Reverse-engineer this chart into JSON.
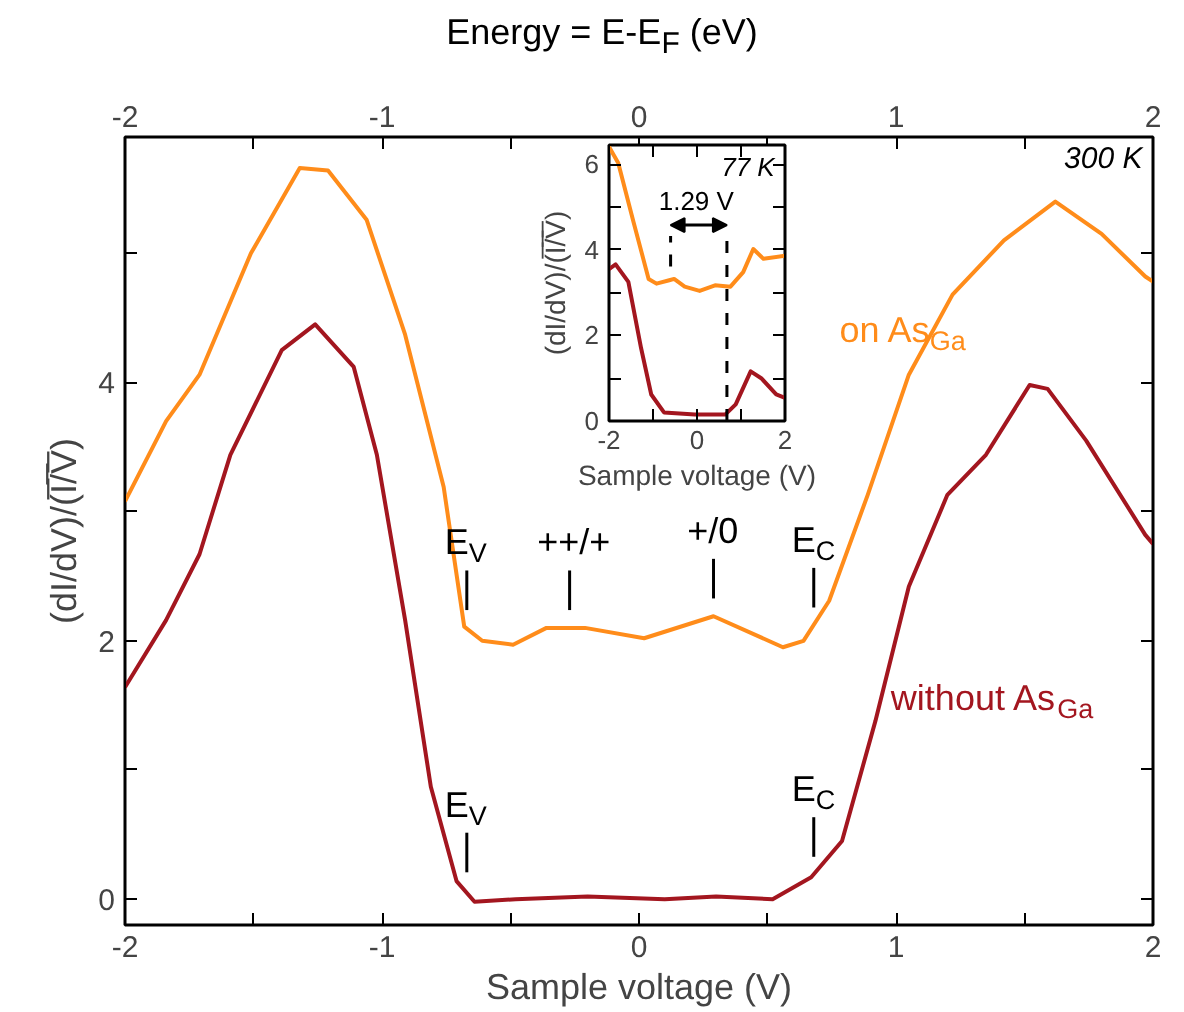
{
  "chart_data": [
    {
      "type": "line",
      "xlabel": "Sample voltage (V)",
      "ylabel": "(dI/dV)/(I̅/̅V̅)",
      "x2label": "Energy = E-E$_{F}$ (eV)",
      "xlim": [
        -2,
        2
      ],
      "ylim": [
        -0.2,
        5.9
      ],
      "x2lim": [
        -2,
        2
      ],
      "xticks": [
        -2,
        {
          "value": -1.5,
          "label": null
        },
        -1,
        {
          "value": -0.5,
          "label": null
        },
        0,
        {
          "value": 0.5,
          "label": null
        },
        1,
        {
          "value": 1.5,
          "label": null
        },
        2
      ],
      "x2ticks": [
        -2,
        {
          "value": -1.5,
          "label": null
        },
        -1,
        {
          "value": -0.5,
          "label": null
        },
        0,
        {
          "value": 0.5,
          "label": null
        },
        1,
        {
          "value": 1.5,
          "label": null
        },
        2
      ],
      "yticks": [
        0,
        {
          "value": 1,
          "label": null
        },
        2,
        {
          "value": 3,
          "label": null
        },
        4,
        {
          "value": 5,
          "label": null
        }
      ],
      "grid": false,
      "legend": false,
      "series": [
        {
          "name": "on As$_{Ga}$",
          "color": "#ff8c1a",
          "x": [
            -2,
            -1.84,
            -1.71,
            -1.51,
            -1.32,
            -1.21,
            -1.06,
            -0.91,
            -0.76,
            -0.68,
            -0.61,
            -0.49,
            -0.36,
            -0.27,
            -0.21,
            0.02,
            0.29,
            0.56,
            0.64,
            0.74,
            0.89,
            1.05,
            1.22,
            1.42,
            1.62,
            1.8,
            1.97,
            2
          ],
          "values": [
            3.08,
            3.7,
            4.06,
            5.0,
            5.66,
            5.64,
            5.26,
            4.37,
            3.19,
            2.11,
            2.0,
            1.97,
            2.1,
            2.1,
            2.1,
            2.02,
            2.19,
            1.95,
            2.0,
            2.31,
            3.13,
            4.06,
            4.68,
            5.1,
            5.4,
            5.15,
            4.82,
            4.78
          ]
        },
        {
          "name": "without As$_{Ga}$",
          "color": "#a3161f",
          "x": [
            -2,
            -1.84,
            -1.71,
            -1.59,
            -1.39,
            -1.26,
            -1.11,
            -1.02,
            -0.91,
            -0.81,
            -0.71,
            -0.64,
            -0.48,
            -0.2,
            0.1,
            0.3,
            0.52,
            0.67,
            0.79,
            0.92,
            1.05,
            1.2,
            1.35,
            1.52,
            1.59,
            1.74,
            1.97,
            2
          ],
          "values": [
            1.64,
            2.16,
            2.67,
            3.44,
            4.25,
            4.45,
            4.12,
            3.44,
            2.16,
            0.87,
            0.14,
            -0.02,
            0.0,
            0.02,
            0.0,
            0.02,
            0.0,
            0.17,
            0.45,
            1.38,
            2.42,
            3.13,
            3.44,
            3.98,
            3.95,
            3.55,
            2.82,
            2.75
          ]
        }
      ],
      "annotations": [
        {
          "text": "E$_{V}$",
          "x": -0.67,
          "y": 2.1
        },
        {
          "text": "++/+",
          "x": -0.27,
          "y": 2.1
        },
        {
          "text": "+/0",
          "x": 0.29,
          "y": 2.19
        },
        {
          "text": "E$_{C}$",
          "x": 0.68,
          "y": 2.12
        },
        {
          "text": "E$_{V}$",
          "x": -0.67,
          "y": 0.07
        },
        {
          "text": "E$_{C}$",
          "x": 0.68,
          "y": 0.19
        },
        "300 K"
      ]
    },
    {
      "type": "line",
      "xlabel": "Sample voltage (V)",
      "ylabel": "(dI/dV)/(I̅/̅V̅)",
      "xlim": [
        -2,
        2
      ],
      "ylim": [
        0,
        6.45
      ],
      "xticks": [
        -2,
        {
          "value": -1,
          "label": null
        },
        0,
        {
          "value": 1,
          "label": null
        },
        2
      ],
      "yticks": [
        0,
        {
          "value": 1,
          "label": null
        },
        2,
        {
          "value": 3,
          "label": null
        },
        4,
        {
          "value": 5,
          "label": null
        },
        6
      ],
      "grid": false,
      "legend": false,
      "series": [
        {
          "color": "#ff8c1a",
          "x": [
            -2,
            -1.79,
            -1.44,
            -1.1,
            -0.92,
            -0.63,
            -0.52,
            -0.28,
            0.06,
            0.41,
            0.76,
            1.05,
            1.28,
            1.51,
            2
          ],
          "values": [
            6.41,
            6.03,
            4.64,
            3.32,
            3.21,
            3.29,
            3.32,
            3.14,
            3.04,
            3.17,
            3.14,
            3.48,
            4.02,
            3.79,
            3.86
          ]
        },
        {
          "color": "#a3161f",
          "x": [
            -2,
            -1.85,
            -1.56,
            -1.27,
            -1.04,
            -0.75,
            -0.05,
            0.64,
            0.88,
            1.22,
            1.46,
            1.8,
            2
          ],
          "values": [
            3.55,
            3.66,
            3.25,
            1.7,
            0.62,
            0.2,
            0.15,
            0.15,
            0.39,
            1.16,
            1.0,
            0.62,
            0.54
          ]
        }
      ],
      "ref_lines": [
        {
          "axis": "x",
          "value": -0.6,
          "line_style": "dashed"
        },
        {
          "axis": "x",
          "value": 0.68,
          "line_style": "dashed"
        }
      ],
      "annotations": [
        "1.29 V",
        "77 K"
      ]
    }
  ]
}
